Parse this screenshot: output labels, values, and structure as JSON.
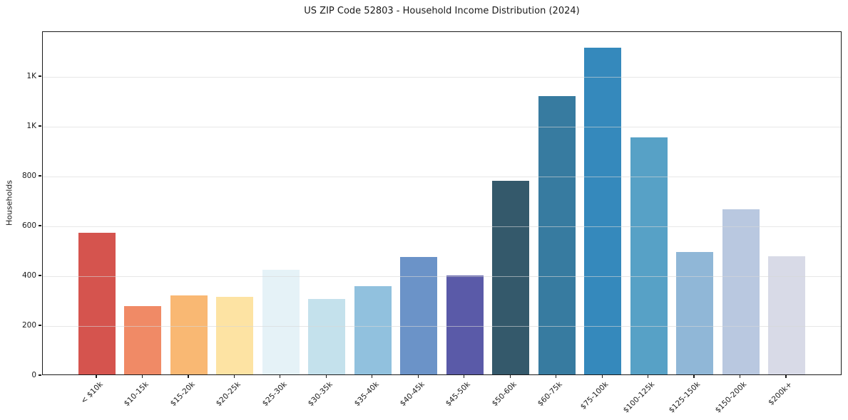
{
  "chart_data": {
    "type": "bar",
    "title": "US ZIP Code 52803 - Household Income Distribution (2024)",
    "xlabel": "",
    "ylabel": "Households",
    "categories": [
      "< $10k",
      "$10-15k",
      "$15-20k",
      "$20-25k",
      "$25-30k",
      "$30-35k",
      "$35-40k",
      "$40-45k",
      "$45-50k",
      "$50-60k",
      "$60-75k",
      "$75-100k",
      "$100-125k",
      "$125-150k",
      "$150-200k",
      "$200k+"
    ],
    "values": [
      568,
      274,
      317,
      311,
      421,
      303,
      354,
      472,
      398,
      777,
      1116,
      1312,
      951,
      491,
      662,
      474
    ],
    "bar_colors": [
      "#d5544e",
      "#f08a66",
      "#f9b873",
      "#fde3a3",
      "#e5f2f7",
      "#c4e1ec",
      "#91c1de",
      "#6b93c8",
      "#5a5aa8",
      "#34596b",
      "#377ba0",
      "#3589bc",
      "#57a1c6",
      "#90b7d7",
      "#b9c8e0",
      "#d8dae7"
    ],
    "ylim": [
      0,
      1380
    ],
    "yticks": [
      {
        "value": 0,
        "label": "0"
      },
      {
        "value": 200,
        "label": "200"
      },
      {
        "value": 400,
        "label": "400"
      },
      {
        "value": 600,
        "label": "600"
      },
      {
        "value": 800,
        "label": "800"
      },
      {
        "value": 1000,
        "label": "1K"
      },
      {
        "value": 1200,
        "label": "1K"
      }
    ],
    "grid": "horizontal",
    "legend": "none"
  },
  "colors": {
    "background": "#ffffff",
    "spine": "#1a1a1a",
    "grid": "#e8e8e8",
    "text": "#1a1a1a"
  }
}
